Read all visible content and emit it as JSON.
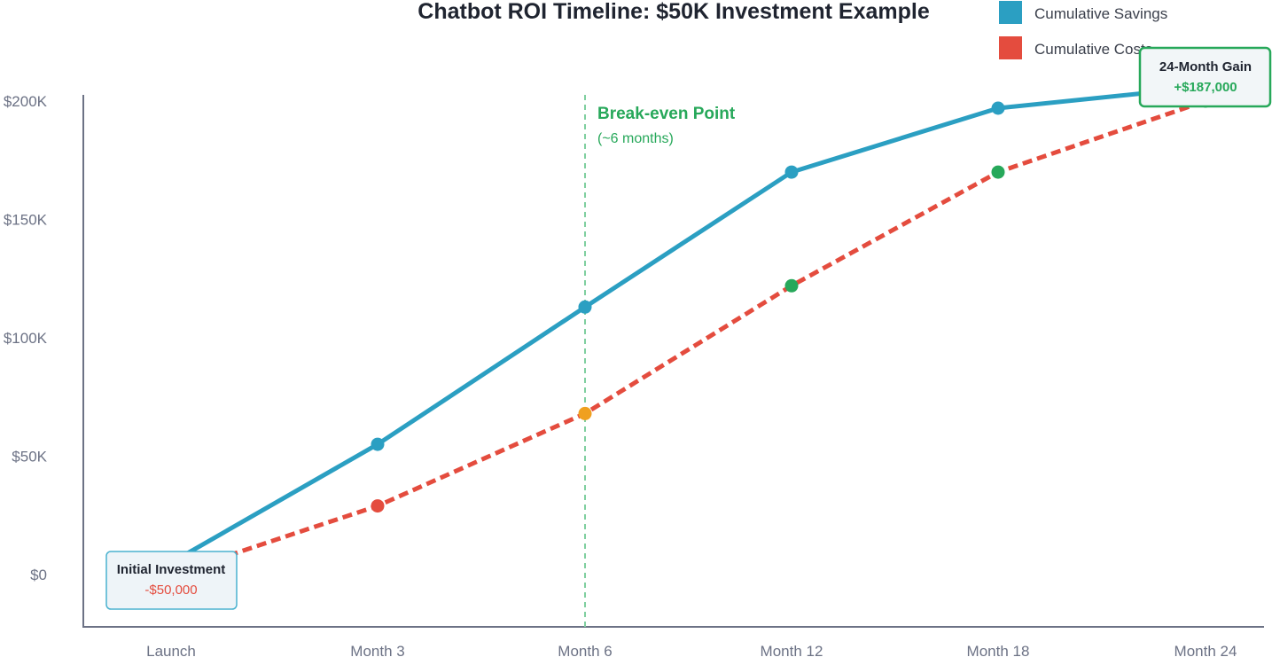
{
  "chart_data": {
    "type": "line",
    "title": "Chatbot ROI Timeline: $50K Investment Example",
    "xlabel": "",
    "ylabel": "",
    "categories": [
      "Launch",
      "Month 3",
      "Month 6",
      "Month 12",
      "Month 18",
      "Month 24"
    ],
    "y_ticks": [
      "$0",
      "$50K",
      "$100K",
      "$150K",
      "$200K"
    ],
    "ylim": [
      0,
      200000
    ],
    "grid": false,
    "legend_position": "top-right",
    "series": [
      {
        "name": "Cumulative Savings",
        "color": "#2b9fc2",
        "style": "solid",
        "values": [
          5000,
          55000,
          113000,
          170000,
          197000,
          206000
        ]
      },
      {
        "name": "Cumulative Costs",
        "color": "#e44c3e",
        "style": "dashed",
        "values": [
          0,
          29000,
          68000,
          122000,
          170000,
          200000
        ],
        "point_colors": [
          "#e44c3e",
          "#e44c3e",
          "#f0a020",
          "#27a85a",
          "#27a85a",
          "#27a85a"
        ]
      }
    ],
    "annotations": {
      "initial": {
        "title": "Initial Investment",
        "value": "-$50,000",
        "value_color": "#e44c3e"
      },
      "gain": {
        "title": "24-Month Gain",
        "value": "+$187,000",
        "value_color": "#27a85a"
      },
      "break_even": {
        "title": "Break-even Point",
        "subtitle": "(~6 months)",
        "category": "Month 6",
        "color": "#27a85a"
      }
    }
  }
}
